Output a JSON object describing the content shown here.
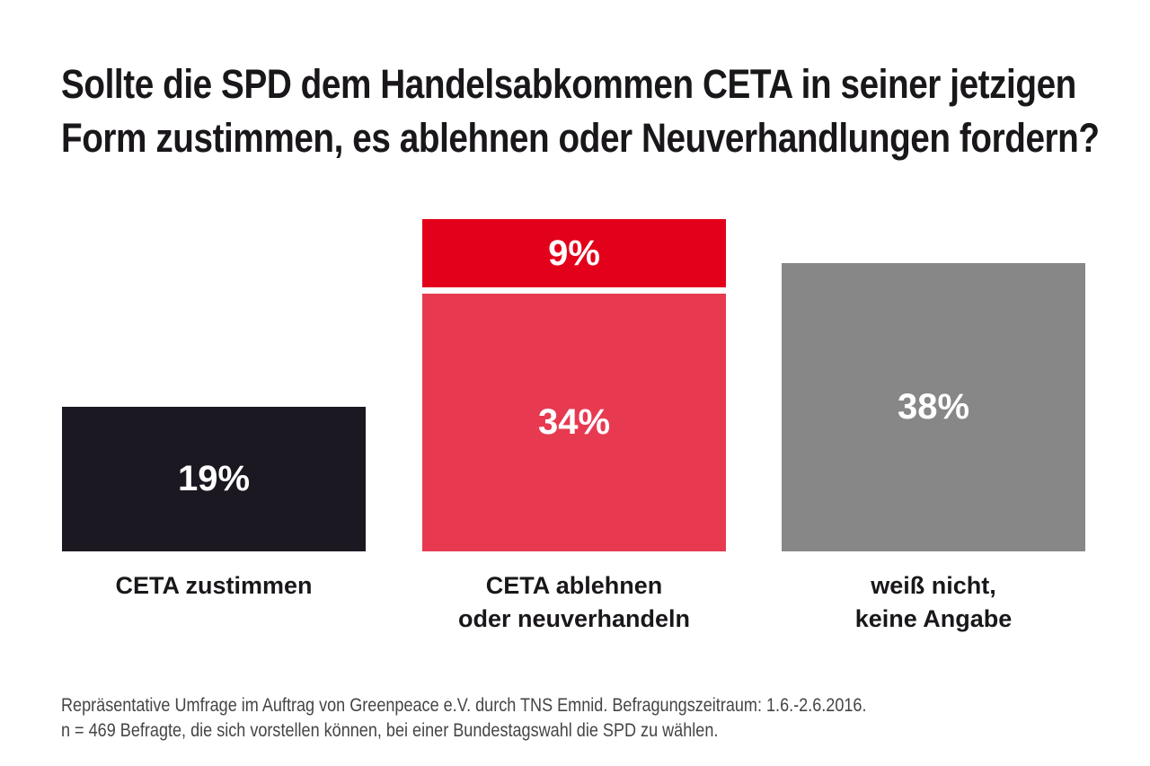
{
  "title": {
    "lines": [
      "Sollte die SPD dem Handelsabkommen CETA in seiner jetzigen",
      "Form zustimmen, es ablehnen oder Neuverhandlungen fordern?"
    ]
  },
  "footer": {
    "lines": [
      "Repräsentative Umfrage im Auftrag von Greenpeace e.V. durch TNS Emnid. Befragungszeitraum: 1.6.-2.6.2016.",
      "n = 469 Befragte, die sich vorstellen können, bei einer Bundestagswahl die SPD zu wählen."
    ]
  },
  "colors": {
    "background": "#ffffff",
    "title_text": "#1a171b",
    "footer_text": "#454545",
    "value_text": "#ffffff",
    "bar_black": "#1b1821",
    "bar_red": "#e3001a",
    "bar_pink_red": "#e73a51",
    "bar_gray": "#878787"
  },
  "chart_data": {
    "type": "bar",
    "stacked": true,
    "unit": "%",
    "ylim": [
      0,
      43
    ],
    "segment_order": "bottom-to-top",
    "title": "Sollte die SPD dem Handelsabkommen CETA in seiner jetzigen Form zustimmen, es ablehnen oder Neuverhandlungen fordern?",
    "categories": [
      "CETA zustimmen",
      "CETA ablehnen oder neuverhandeln",
      "weiß nicht, keine Angabe"
    ],
    "bars": [
      {
        "category": "CETA zustimmen",
        "category_lines": [
          "CETA zustimmen"
        ],
        "total": 19,
        "segments": [
          {
            "value": 19,
            "label": "19%",
            "color": "#1b1821"
          }
        ]
      },
      {
        "category": "CETA ablehnen oder neuverhandeln",
        "category_lines": [
          "CETA ablehnen",
          "oder neuverhandeln"
        ],
        "total": 43,
        "segments": [
          {
            "value": 34,
            "label": "34%",
            "color": "#e73a51"
          },
          {
            "value": 9,
            "label": "9%",
            "color": "#e3001a"
          }
        ]
      },
      {
        "category": "weiß nicht, keine Angabe",
        "category_lines": [
          "weiß nicht,",
          "keine Angabe"
        ],
        "total": 38,
        "segments": [
          {
            "value": 38,
            "label": "38%",
            "color": "#878787"
          }
        ]
      }
    ],
    "source_lines": [
      "Repräsentative Umfrage im Auftrag von Greenpeace e.V. durch TNS Emnid. Befragungszeitraum: 1.6.-2.6.2016.",
      "n = 469 Befragte, die sich vorstellen können, bei einer Bundestagswahl die SPD zu wählen."
    ]
  }
}
